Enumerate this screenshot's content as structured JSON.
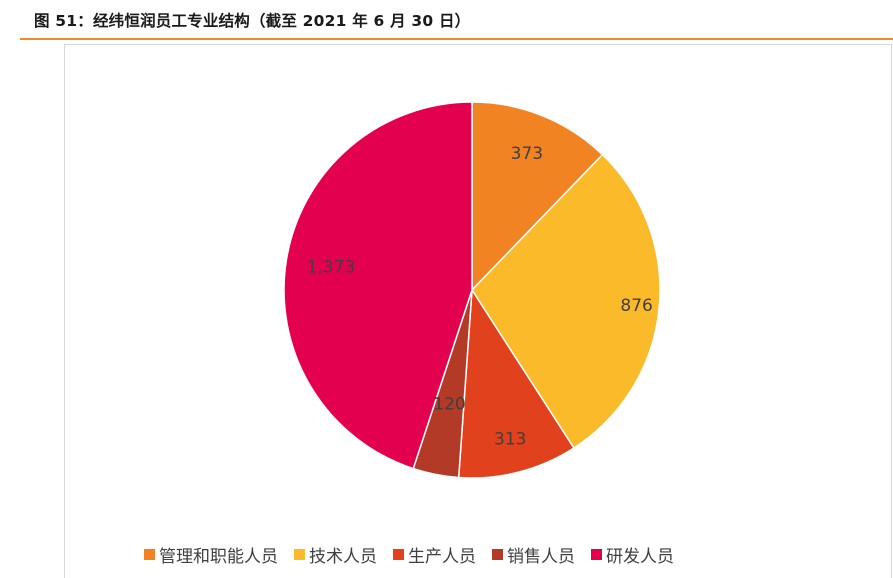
{
  "figure": {
    "title": "图 51：经纬恒润员工专业结构（截至 2021 年 6 月 30 日）"
  },
  "chart_data": {
    "type": "pie",
    "title": "",
    "categories": [
      "管理和职能人员",
      "技术人员",
      "生产人员",
      "销售人员",
      "研发人员"
    ],
    "values": [
      373,
      876,
      313,
      120,
      1373
    ],
    "data_labels": [
      "373",
      "876",
      "313",
      "120",
      "1,373"
    ],
    "colors": [
      "#F28322",
      "#FBBA2A",
      "#E1411C",
      "#B23A27",
      "#E2004F"
    ],
    "start_angle": "12 o'clock, clockwise",
    "legend_placement": "bottom"
  }
}
